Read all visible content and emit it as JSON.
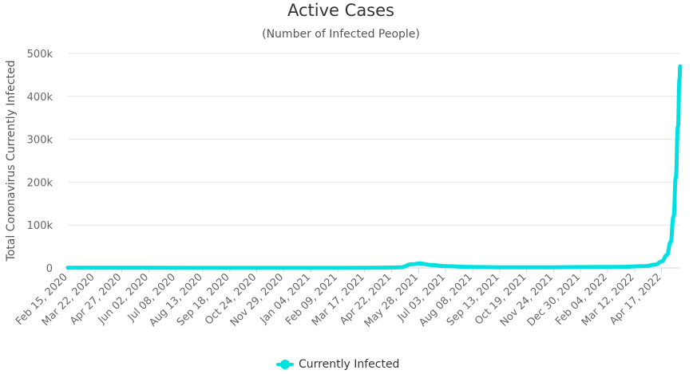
{
  "chart_data": {
    "type": "line",
    "title": "Active Cases",
    "subtitle": "(Number of Infected People)",
    "ylabel": "Total Coronavirus Currently Infected",
    "xlabel": "",
    "ylim": [
      0,
      500000
    ],
    "y_ticks": [
      "0",
      "100k",
      "200k",
      "300k",
      "400k",
      "500k"
    ],
    "y_tick_values": [
      0,
      100000,
      200000,
      300000,
      400000,
      500000
    ],
    "x_tick_labels": [
      "Feb 15, 2020",
      "Mar 22, 2020",
      "Apr 27, 2020",
      "Jun 02, 2020",
      "Jul 08, 2020",
      "Aug 13, 2020",
      "Sep 18, 2020",
      "Oct 24, 2020",
      "Nov 29, 2020",
      "Jan 04, 2021",
      "Feb 09, 2021",
      "Mar 17, 2021",
      "Apr 22, 2021",
      "May 28, 2021",
      "Jul 03, 2021",
      "Aug 08, 2021",
      "Sep 13, 2021",
      "Oct 19, 2021",
      "Nov 24, 2021",
      "Dec 30, 2021",
      "Feb 04, 2022",
      "Mar 12, 2022",
      "Apr 17, 2022"
    ],
    "x_range": [
      "2020-02-15",
      "2022-05-23"
    ],
    "grid": true,
    "legend": "bottom-center",
    "series": [
      {
        "name": "Currently Infected",
        "color": "#00e0e0",
        "points": [
          [
            "2020-02-15",
            500
          ],
          [
            "2020-06-01",
            300
          ],
          [
            "2020-10-01",
            200
          ],
          [
            "2021-01-01",
            200
          ],
          [
            "2021-04-01",
            400
          ],
          [
            "2021-05-10",
            1500
          ],
          [
            "2021-05-25",
            8500
          ],
          [
            "2021-06-05",
            10500
          ],
          [
            "2021-06-20",
            7000
          ],
          [
            "2021-07-10",
            4000
          ],
          [
            "2021-08-10",
            2500
          ],
          [
            "2021-10-01",
            1500
          ],
          [
            "2021-12-01",
            1500
          ],
          [
            "2022-01-15",
            2000
          ],
          [
            "2022-03-01",
            2500
          ],
          [
            "2022-04-05",
            4000
          ],
          [
            "2022-04-20",
            8000
          ],
          [
            "2022-04-28",
            15000
          ],
          [
            "2022-05-05",
            30000
          ],
          [
            "2022-05-10",
            60000
          ],
          [
            "2022-05-14",
            120000
          ],
          [
            "2022-05-17",
            210000
          ],
          [
            "2022-05-20",
            330000
          ],
          [
            "2022-05-22",
            440000
          ],
          [
            "2022-05-23",
            470000
          ]
        ]
      }
    ]
  }
}
